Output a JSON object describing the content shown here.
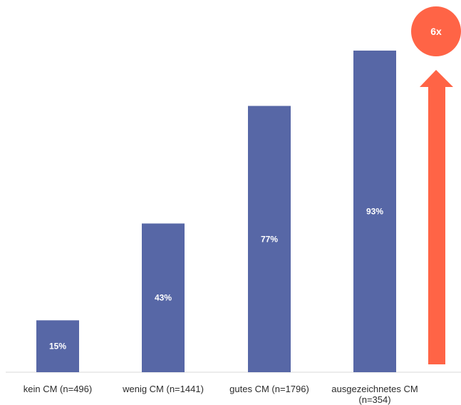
{
  "chart_data": {
    "type": "bar",
    "categories": [
      [
        "kein CM (n=496)"
      ],
      [
        "wenig CM (n=1441)"
      ],
      [
        "gutes CM (n=1796)"
      ],
      [
        "ausgezeichnetes CM",
        "(n=354)"
      ]
    ],
    "values": [
      15,
      43,
      77,
      93
    ],
    "value_labels": [
      "15%",
      "43%",
      "77%",
      "93%"
    ],
    "ylim": [
      0,
      100
    ],
    "grid": false,
    "bar_color": "#5767a6",
    "annotation": {
      "label": "6x",
      "color": "#ff6446"
    }
  }
}
